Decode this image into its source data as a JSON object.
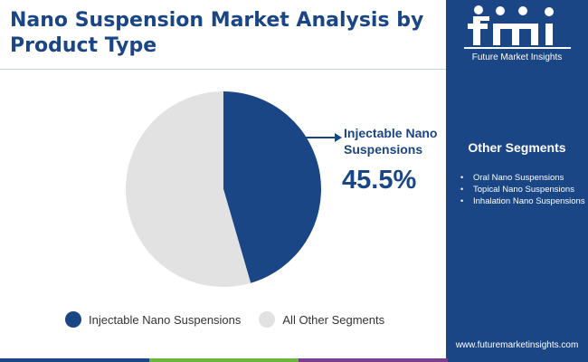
{
  "title": "Nano Suspension Market Analysis by Product Type",
  "logo": {
    "letters": "fmi",
    "caption": "Future Market Insights"
  },
  "callout": {
    "label": "Injectable Nano Suspensions",
    "value": "45.5%"
  },
  "sidebar": {
    "segments_title": "Other Segments",
    "segments": [
      "Oral Nano Suspensions",
      "Topical Nano Suspensions",
      "Inhalation Nano Suspensions"
    ],
    "website": "www.futuremarketinsights.com"
  },
  "colors": {
    "brand_blue": "#1b4685",
    "slice_primary": "#1b4685",
    "slice_other": "#e2e2e2",
    "footer_segments": [
      "#1b4685",
      "#6bb53c",
      "#7a3e8e",
      "#1b4685"
    ]
  },
  "chart_data": {
    "type": "pie",
    "title": "Nano Suspension Market Analysis by Product Type",
    "categories": [
      "Injectable Nano Suspensions",
      "All Other Segments"
    ],
    "values": [
      45.5,
      54.5
    ],
    "colors": [
      "#1b4685",
      "#e2e2e2"
    ],
    "legend": {
      "position": "bottom",
      "entries": [
        "Injectable Nano Suspensions",
        "All Other Segments"
      ]
    },
    "annotations": [
      {
        "label": "Injectable Nano Suspensions",
        "value": "45.5%"
      }
    ]
  }
}
